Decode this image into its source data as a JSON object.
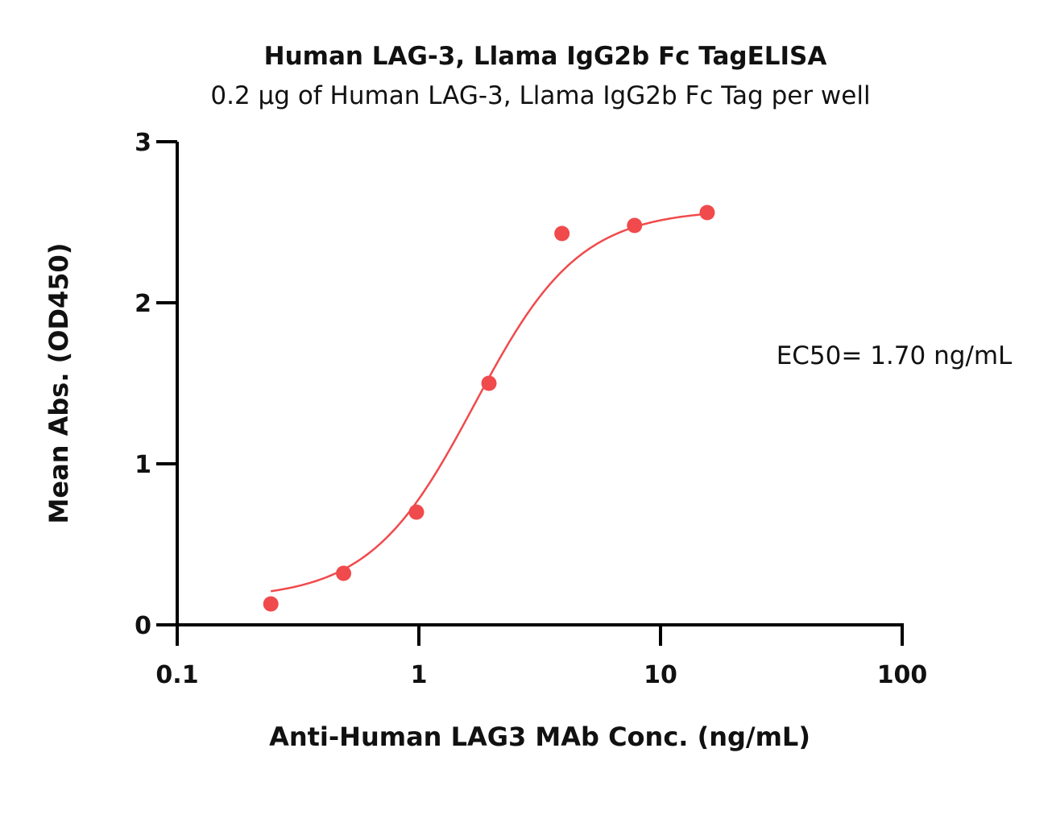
{
  "chart_data": {
    "type": "scatter",
    "title": "Human LAG-3, Llama IgG2b Fc TagELISA",
    "subtitle": "0.2 μg of Human LAG-3, Llama IgG2b Fc Tag per well",
    "xlabel": "Anti-Human LAG3 MAb Conc. (ng/mL)",
    "ylabel": "Mean Abs. (OD450)",
    "x_scale": "log",
    "xlim": [
      0.1,
      100
    ],
    "ylim": [
      0,
      3
    ],
    "x_ticks": [
      0.1,
      1,
      10,
      100
    ],
    "x_tick_labels": [
      "0.1",
      "1",
      "10",
      "100"
    ],
    "y_ticks": [
      0,
      1,
      2,
      3
    ],
    "y_tick_labels": [
      "0",
      "1",
      "2",
      "3"
    ],
    "grid": false,
    "series": [
      {
        "x": [
          0.244,
          0.488,
          0.977,
          1.95,
          3.91,
          7.81,
          15.6
        ],
        "y": [
          0.13,
          0.32,
          0.7,
          1.5,
          2.43,
          2.48,
          2.56
        ],
        "color": "#f04a4c",
        "marker": "circle"
      }
    ],
    "fit_curve": {
      "model": "four-parameter logistic",
      "bottom": 0.16,
      "top": 2.58,
      "ec50": 1.7,
      "hill_slope": 2.0,
      "x_range": [
        0.244,
        15.6
      ],
      "color": "#f04a4c"
    },
    "annotations": [
      {
        "text": "EC50= 1.70 ng/mL"
      }
    ]
  }
}
